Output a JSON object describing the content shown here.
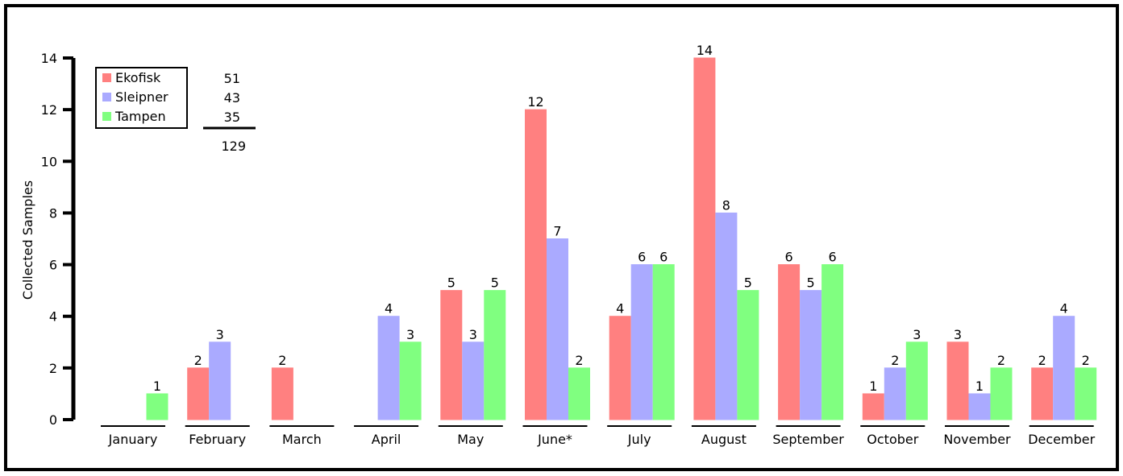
{
  "chart_data": {
    "type": "bar",
    "title": "",
    "xlabel": "",
    "ylabel": "Collected Samples",
    "ylim": [
      0,
      14
    ],
    "yticks": [
      0,
      2,
      4,
      6,
      8,
      10,
      12,
      14
    ],
    "categories": [
      "January",
      "February",
      "March",
      "April",
      "May",
      "June*",
      "July",
      "August",
      "September",
      "October",
      "November",
      "December"
    ],
    "series": [
      {
        "name": "Ekofisk",
        "color": "#ff8080",
        "values": [
          0,
          2,
          2,
          0,
          5,
          12,
          4,
          14,
          6,
          1,
          3,
          2
        ]
      },
      {
        "name": "Sleipner",
        "color": "#aaaaff",
        "values": [
          0,
          3,
          0,
          4,
          3,
          7,
          6,
          8,
          5,
          2,
          1,
          4
        ]
      },
      {
        "name": "Tampen",
        "color": "#80ff80",
        "values": [
          1,
          0,
          0,
          3,
          5,
          2,
          6,
          5,
          6,
          3,
          2,
          2
        ]
      }
    ],
    "legend": {
      "placement": "top-left",
      "totals": [
        "51",
        "43",
        "35"
      ],
      "grand_total": "129"
    },
    "grid": false
  }
}
